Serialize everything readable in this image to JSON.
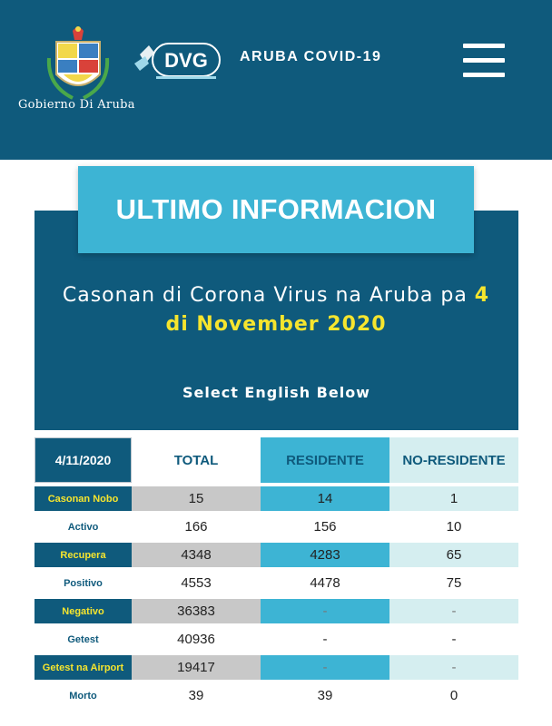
{
  "header": {
    "gov_name": "Gobierno Di Aruba",
    "site_title": "ARUBA COVID-19",
    "dvg_logo_text": "DVG",
    "menu_icon": "hamburger-menu-icon"
  },
  "hero": {
    "banner": "ULTIMO INFORMACION",
    "headline_prefix": "Casonan di Corona Virus na Aruba pa ",
    "headline_date": "4 di November 2020",
    "subhead": "Select English Below"
  },
  "colors": {
    "primary": "#0f5a7c",
    "accent": "#3db4d4",
    "highlight": "#f6e52e",
    "pale": "#d5eef0"
  },
  "table": {
    "headers": [
      "4/11/2020",
      "TOTAL",
      "RESIDENTE",
      "NO-RESIDENTE"
    ],
    "rows": [
      {
        "label": "Casonan Nobo",
        "total": "15",
        "residente": "14",
        "no_residente": "1"
      },
      {
        "label": "Activo",
        "total": "166",
        "residente": "156",
        "no_residente": "10"
      },
      {
        "label": "Recupera",
        "total": "4348",
        "residente": "4283",
        "no_residente": "65"
      },
      {
        "label": "Positivo",
        "total": "4553",
        "residente": "4478",
        "no_residente": "75"
      },
      {
        "label": "Negativo",
        "total": "36383",
        "residente": "-",
        "no_residente": "-"
      },
      {
        "label": "Getest",
        "total": "40936",
        "residente": "-",
        "no_residente": "-"
      },
      {
        "label": "Getest na Airport",
        "total": "19417",
        "residente": "-",
        "no_residente": "-"
      },
      {
        "label": "Morto",
        "total": "39",
        "residente": "39",
        "no_residente": "0"
      }
    ]
  }
}
